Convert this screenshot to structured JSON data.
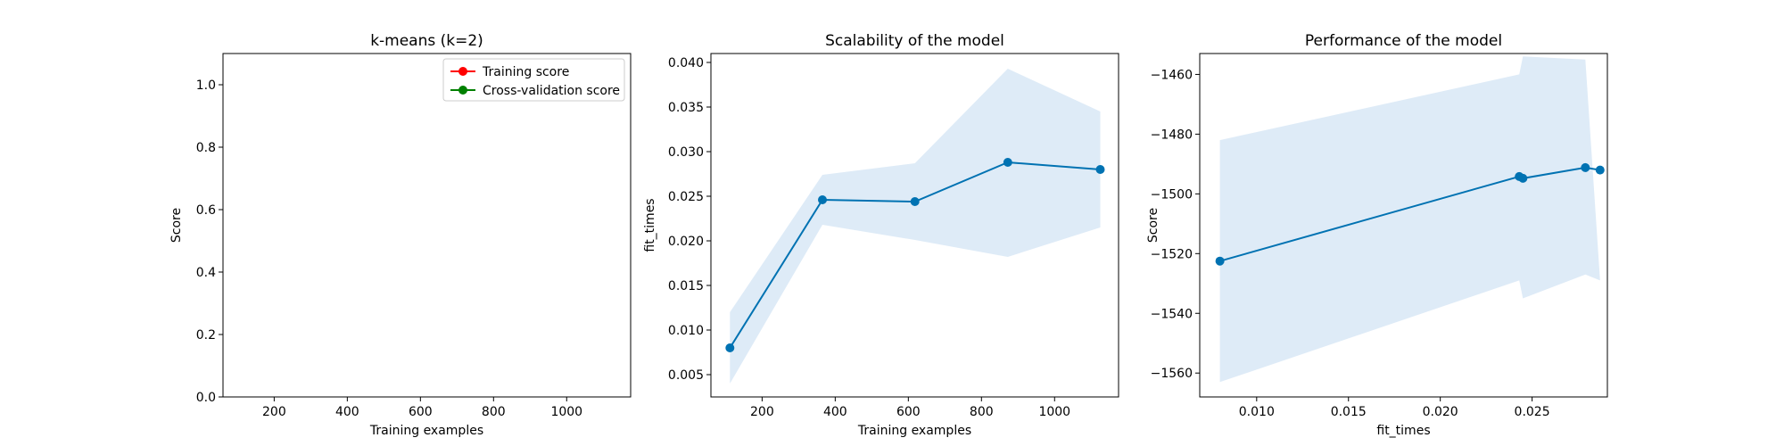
{
  "chart_data": [
    {
      "type": "line",
      "title": "k-means (k=2)",
      "xlabel": "Training examples",
      "ylabel": "Score",
      "xlim": [
        60,
        1175
      ],
      "ylim": [
        0.0,
        1.1
      ],
      "xticks": [
        200,
        400,
        600,
        800,
        1000
      ],
      "yticks": [
        0.0,
        0.2,
        0.4,
        0.6,
        0.8,
        1.0
      ],
      "x_tick_labels": [
        "200",
        "400",
        "600",
        "800",
        "1000"
      ],
      "y_tick_labels": [
        "0.0",
        "0.2",
        "0.4",
        "0.6",
        "0.8",
        "1.0"
      ],
      "legend_position": "top-right",
      "series": [
        {
          "name": "Training score",
          "color": "#ff0000",
          "x": [],
          "y": []
        },
        {
          "name": "Cross-validation score",
          "color": "#008000",
          "x": [],
          "y": []
        }
      ]
    },
    {
      "type": "line",
      "title": "Scalability of the model",
      "xlabel": "Training examples",
      "ylabel": "fit_times",
      "xlim": [
        60,
        1175
      ],
      "ylim": [
        0.0025,
        0.041
      ],
      "xticks": [
        200,
        400,
        600,
        800,
        1000
      ],
      "yticks": [
        0.005,
        0.01,
        0.015,
        0.02,
        0.025,
        0.03,
        0.035,
        0.04
      ],
      "x_tick_labels": [
        "200",
        "400",
        "600",
        "800",
        "1000"
      ],
      "y_tick_labels": [
        "0.005",
        "0.010",
        "0.015",
        "0.020",
        "0.025",
        "0.030",
        "0.035",
        "0.040"
      ],
      "line_color": "#0072b2",
      "band_color": "#deebf7",
      "series": [
        {
          "x": [
            112,
            365,
            618,
            872,
            1125
          ],
          "y": [
            0.008,
            0.0246,
            0.0244,
            0.0288,
            0.028
          ]
        }
      ],
      "band": {
        "upper": [
          0.012,
          0.0274,
          0.0287,
          0.0393,
          0.0345
        ],
        "lower": [
          0.004,
          0.0218,
          0.0201,
          0.0182,
          0.0215
        ]
      }
    },
    {
      "type": "line",
      "title": "Performance of the model",
      "xlabel": "fit_times",
      "ylabel": "Score",
      "xlim": [
        0.0069,
        0.0291
      ],
      "ylim": [
        -1568,
        -1453
      ],
      "xticks": [
        0.01,
        0.015,
        0.02,
        0.025
      ],
      "yticks": [
        -1560,
        -1540,
        -1520,
        -1500,
        -1480,
        -1460
      ],
      "x_tick_labels": [
        "0.010",
        "0.015",
        "0.020",
        "0.025"
      ],
      "y_tick_labels": [
        "−1560",
        "−1540",
        "−1520",
        "−1500",
        "−1480",
        "−1460"
      ],
      "line_color": "#0072b2",
      "band_color": "#deebf7",
      "series": [
        {
          "x": [
            0.008,
            0.0243,
            0.0245,
            0.0279,
            0.0287
          ],
          "y": [
            -1522.5,
            -1494.2,
            -1494.8,
            -1491.2,
            -1492.0
          ]
        }
      ],
      "band": {
        "upper": [
          -1482.0,
          -1460.0,
          -1454.0,
          -1455.0,
          -1529.0
        ],
        "lower": [
          -1563.0,
          -1529.0,
          -1535.0,
          -1527.0,
          -1529.0
        ]
      }
    }
  ]
}
